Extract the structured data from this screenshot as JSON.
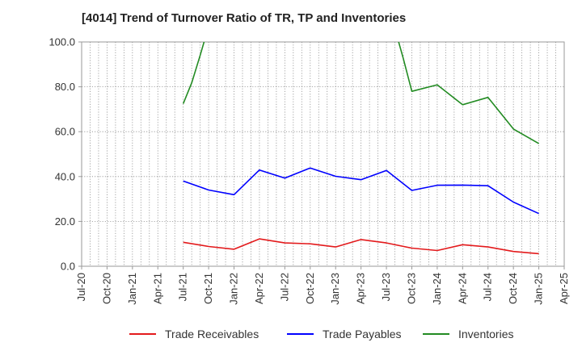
{
  "chart_data": {
    "type": "line",
    "title": "[4014]  Trend of Turnover Ratio of TR, TP and Inventories",
    "xlabel": "",
    "ylabel": "",
    "ylim": [
      0,
      100
    ],
    "y_ticks": [
      "0.0",
      "20.0",
      "40.0",
      "60.0",
      "80.0",
      "100.0"
    ],
    "x_ticks": [
      "Jul-20",
      "Oct-20",
      "Jan-21",
      "Apr-21",
      "Jul-21",
      "Oct-21",
      "Jan-22",
      "Apr-22",
      "Jul-22",
      "Oct-22",
      "Jan-23",
      "Apr-23",
      "Jul-23",
      "Oct-23",
      "Jan-24",
      "Apr-24",
      "Jul-24",
      "Oct-24",
      "Jan-25",
      "Apr-25"
    ],
    "x": [
      "Jul-21",
      "Aug-21",
      "Sep-21",
      "Oct-21",
      "Nov-21",
      "Dec-21",
      "Jan-22",
      "Feb-22",
      "Mar-22",
      "Apr-22",
      "May-22",
      "Jun-22",
      "Jul-22",
      "Aug-22",
      "Sep-22",
      "Oct-22",
      "Nov-22",
      "Dec-22",
      "Jan-23",
      "Feb-23",
      "Mar-23",
      "Apr-23",
      "May-23",
      "Jun-23",
      "Jul-23",
      "Aug-23",
      "Sep-23",
      "Oct-23",
      "Nov-23",
      "Dec-23",
      "Jan-24",
      "Feb-24",
      "Mar-24",
      "Apr-24",
      "May-24",
      "Jun-24",
      "Jul-24",
      "Aug-24",
      "Sep-24",
      "Oct-24",
      "Nov-24",
      "Dec-24",
      "Jan-25"
    ],
    "grid": true,
    "legend_position": "bottom",
    "series": [
      {
        "name": "Trade Receivables",
        "color": "#e31a1c",
        "values": [
          10.7,
          null,
          null,
          8.8,
          null,
          null,
          7.6,
          null,
          null,
          12.2,
          null,
          null,
          10.4,
          null,
          null,
          10.0,
          null,
          null,
          8.6,
          null,
          null,
          11.9,
          null,
          null,
          10.4,
          null,
          null,
          8.1,
          null,
          null,
          7.0,
          null,
          null,
          9.6,
          null,
          null,
          8.6,
          null,
          null,
          6.6,
          null,
          null,
          5.6
        ]
      },
      {
        "name": "Trade Payables",
        "color": "#0000ff",
        "values": [
          38.0,
          null,
          null,
          34.0,
          null,
          null,
          31.9,
          null,
          null,
          42.9,
          null,
          null,
          39.3,
          null,
          null,
          43.8,
          null,
          null,
          40.1,
          null,
          null,
          38.6,
          null,
          null,
          42.7,
          null,
          null,
          33.8,
          null,
          null,
          36.1,
          null,
          null,
          36.2,
          null,
          null,
          35.9,
          null,
          null,
          28.6,
          null,
          null,
          23.5
        ]
      },
      {
        "name": "Inventories",
        "color": "#228b22",
        "values": [
          72.5,
          81.8,
          94.0,
          107,
          null,
          null,
          null,
          null,
          null,
          null,
          null,
          null,
          null,
          null,
          null,
          null,
          null,
          null,
          null,
          null,
          null,
          null,
          null,
          null,
          null,
          106,
          92.5,
          78.0,
          null,
          null,
          80.9,
          null,
          null,
          72.0,
          null,
          null,
          75.3,
          null,
          null,
          61.2,
          null,
          null,
          54.7
        ]
      }
    ]
  }
}
